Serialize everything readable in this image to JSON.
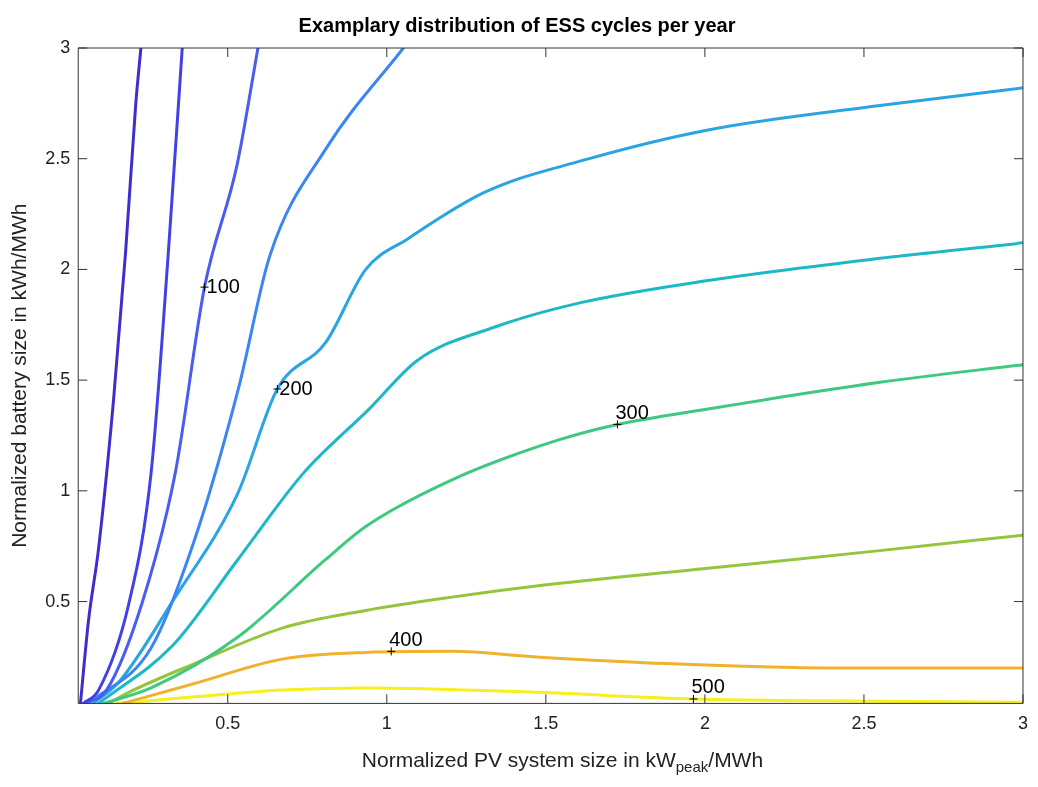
{
  "chart_data": {
    "type": "line",
    "title": "Examplary distribution of ESS cycles per year",
    "xlabel": "Normalized PV system size in kW$_{peak}$/MWh",
    "ylabel": "Normalized battery size in kWh/MWh",
    "xlim": [
      0.03,
      3
    ],
    "ylim": [
      0.04,
      3
    ],
    "xticks": [
      0.5,
      1,
      1.5,
      2,
      2.5,
      3
    ],
    "yticks": [
      0.5,
      1,
      1.5,
      2,
      2.5,
      3
    ],
    "grid": false,
    "legend": false,
    "marker": "none",
    "line_style": "solid",
    "series": [
      {
        "color": "#3d2fcf",
        "x": [
          0.037,
          0.062,
          0.094,
          0.141,
          0.179,
          0.211,
          0.227
        ],
        "values": [
          0.04,
          0.41,
          0.74,
          1.41,
          2.08,
          2.75,
          3
        ]
      },
      {
        "color": "#4340e6",
        "x": [
          0.046,
          0.094,
          0.189,
          0.259,
          0.313,
          0.357
        ],
        "values": [
          0.04,
          0.1,
          0.49,
          1.08,
          2.07,
          3
        ]
      },
      {
        "color": "#4a5cf2",
        "x": [
          0.052,
          0.119,
          0.23,
          0.335,
          0.427,
          0.529,
          0.595
        ],
        "values": [
          0.04,
          0.1,
          0.49,
          1.08,
          1.92,
          2.47,
          3
        ]
      },
      {
        "color": "#3a86f2",
        "x": [
          0.062,
          0.259,
          0.396,
          0.535,
          0.632,
          0.811,
          1.052
        ],
        "values": [
          0.04,
          0.29,
          0.78,
          1.47,
          2.06,
          2.55,
          3
        ]
      },
      {
        "color": "#2aa4e2",
        "x": [
          0.078,
          0.16,
          0.326,
          0.532,
          0.656,
          0.808,
          0.934,
          1.068,
          1.31,
          1.61,
          2.01,
          2.55,
          3
        ],
        "values": [
          0.04,
          0.14,
          0.5,
          0.99,
          1.46,
          1.67,
          2.0,
          2.14,
          2.35,
          2.49,
          2.63,
          2.74,
          2.82
        ]
      },
      {
        "color": "#1db8c6",
        "x": [
          0.094,
          0.326,
          0.532,
          0.738,
          0.945,
          1.097,
          1.34,
          1.61,
          2.01,
          2.55,
          3
        ],
        "values": [
          0.04,
          0.3,
          0.69,
          1.08,
          1.37,
          1.59,
          1.74,
          1.85,
          1.95,
          2.05,
          2.12
        ]
      },
      {
        "color": "#3fc87f",
        "x": [
          0.11,
          0.259,
          0.532,
          0.808,
          0.935,
          1.205,
          1.54,
          1.725,
          2.01,
          2.55,
          3
        ],
        "values": [
          0.04,
          0.11,
          0.34,
          0.69,
          0.84,
          1.05,
          1.23,
          1.3,
          1.37,
          1.49,
          1.57
        ]
      },
      {
        "color": "#93c63c",
        "x": [
          0.125,
          0.189,
          0.396,
          0.671,
          0.935,
          1.205,
          1.47,
          2.01,
          2.55,
          3
        ],
        "values": [
          0.04,
          0.09,
          0.22,
          0.38,
          0.46,
          0.52,
          0.57,
          0.65,
          0.73,
          0.8
        ]
      },
      {
        "color": "#efb22f",
        "x": [
          0.17,
          0.396,
          0.671,
          0.935,
          1.205,
          1.47,
          1.88,
          2.41,
          3
        ],
        "values": [
          0.04,
          0.13,
          0.24,
          0.27,
          0.275,
          0.25,
          0.22,
          0.2,
          0.2
        ]
      },
      {
        "color": "#f7ef1e",
        "x": [
          0.15,
          0.2,
          0.396,
          0.671,
          0.935,
          1.47,
          1.964,
          2.55,
          3
        ],
        "values": [
          0.04,
          0.045,
          0.07,
          0.1,
          0.11,
          0.09,
          0.06,
          0.05,
          0.045
        ]
      }
    ],
    "annotations": [
      {
        "text": "100",
        "x": 0.427,
        "y": 1.92
      },
      {
        "text": "200",
        "x": 0.656,
        "y": 1.46
      },
      {
        "text": "300",
        "x": 1.725,
        "y": 1.3
      },
      {
        "text": "400",
        "x": 1.014,
        "y": 0.275
      },
      {
        "text": "500",
        "x": 1.964,
        "y": 0.06
      }
    ]
  }
}
